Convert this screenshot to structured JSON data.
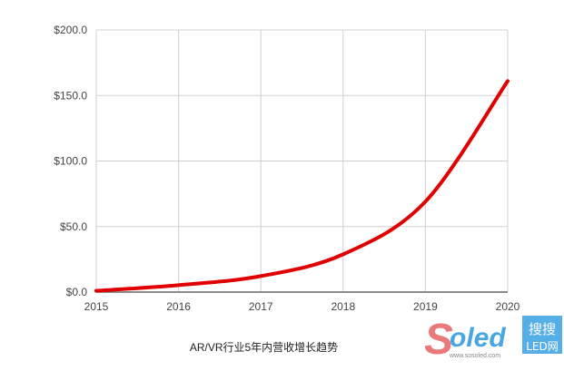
{
  "chart_data": {
    "type": "line",
    "title": "AR/VR行业5年内营收增长趋势",
    "xlabel": "",
    "ylabel": "",
    "x": [
      2015,
      2016,
      2017,
      2018,
      2019,
      2020
    ],
    "x_tick_labels": [
      "2015",
      "2016",
      "2017",
      "2018",
      "2019",
      "2020"
    ],
    "y_tick_labels": [
      "$0.0",
      "$50.0",
      "$100.0",
      "$150.0",
      "$200.0"
    ],
    "y_ticks": [
      0,
      50,
      100,
      150,
      200
    ],
    "ylim": [
      0,
      200
    ],
    "xlim": [
      2015,
      2020
    ],
    "grid": true,
    "smooth": true,
    "series": [
      {
        "values": [
          1,
          5.3,
          12.2,
          28.8,
          69,
          161
        ],
        "color": "#e00000"
      }
    ]
  },
  "watermark": {
    "brand": "Soled",
    "cn": "搜搜",
    "sub": "LED网",
    "url": "www.sosoled.com"
  },
  "colors": {
    "grid": "#d0d0d0",
    "axis": "#666666",
    "line": "#e00000"
  }
}
